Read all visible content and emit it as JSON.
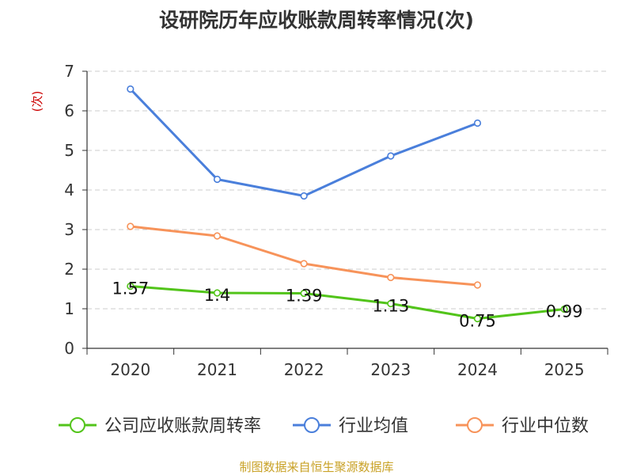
{
  "chart_data": {
    "type": "line",
    "title": "设研院历年应收账款周转率情况(次)",
    "ylabel": "(次)",
    "xlabel": "",
    "categories": [
      "2020",
      "2021",
      "2022",
      "2023",
      "2024",
      "2025"
    ],
    "ylim": [
      0,
      7
    ],
    "yticks": [
      "0",
      "1",
      "2",
      "3",
      "4",
      "5",
      "6",
      "7"
    ],
    "grid": true,
    "legend_position": "bottom",
    "series": [
      {
        "name": "公司应收账款周转率",
        "color": "#52c41a",
        "values": [
          1.57,
          1.4,
          1.39,
          1.13,
          0.75,
          0.99
        ],
        "labels": [
          "1.57",
          "1.4",
          "1.39",
          "1.13",
          "0.75",
          "0.99"
        ]
      },
      {
        "name": "行业均值",
        "color": "#4a7fdb",
        "values": [
          6.55,
          4.27,
          3.85,
          4.86,
          5.69,
          null
        ],
        "labels": []
      },
      {
        "name": "行业中位数",
        "color": "#f7935a",
        "values": [
          3.08,
          2.84,
          2.14,
          1.79,
          1.6,
          null
        ],
        "labels": []
      }
    ],
    "source": "制图数据来自恒生聚源数据库"
  },
  "colors": {
    "title": "#333333",
    "axis": "#333333",
    "grid": "#cccccc",
    "ylabel": "#cc0000",
    "source": "#c9a227"
  }
}
